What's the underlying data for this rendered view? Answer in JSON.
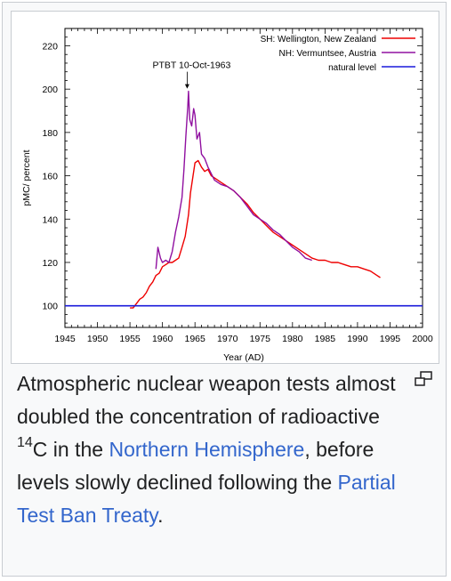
{
  "chart_data": {
    "type": "line",
    "title": "",
    "xlabel": "Year (AD)",
    "ylabel": "pMC/ percent",
    "xlim": [
      1945,
      2000
    ],
    "ylim": [
      90,
      228
    ],
    "x_ticks": [
      1945,
      1950,
      1955,
      1960,
      1965,
      1970,
      1975,
      1980,
      1985,
      1990,
      1995,
      2000
    ],
    "y_ticks": [
      100,
      120,
      140,
      160,
      180,
      200,
      220
    ],
    "legend_position": "top-right",
    "annotation": {
      "text": "PTBT 10-Oct-1963",
      "x": 1963.8,
      "y": 199
    },
    "series": [
      {
        "name": "SH: Wellington, New Zealand",
        "color": "#ee0000",
        "x": [
          1955.0,
          1955.5,
          1956.0,
          1956.5,
          1957.0,
          1957.5,
          1958.0,
          1958.5,
          1959.0,
          1959.5,
          1960.0,
          1960.5,
          1961.0,
          1961.5,
          1962.0,
          1962.5,
          1963.0,
          1963.5,
          1964.0,
          1964.3,
          1964.7,
          1965.0,
          1965.5,
          1966.0,
          1966.5,
          1967.0,
          1967.5,
          1968.0,
          1968.5,
          1969.0,
          1970.0,
          1971.0,
          1972.0,
          1973.0,
          1974.0,
          1975.0,
          1976.0,
          1977.0,
          1978.0,
          1979.0,
          1980.0,
          1981.0,
          1982.0,
          1983.0,
          1984.0,
          1985.0,
          1986.0,
          1987.0,
          1988.0,
          1989.0,
          1990.0,
          1991.0,
          1992.0,
          1993.0,
          1993.5
        ],
        "y": [
          99,
          99,
          101,
          103,
          104,
          106,
          109,
          111,
          114,
          115,
          118,
          119,
          120,
          120,
          121,
          122,
          127,
          132,
          142,
          152,
          160,
          166,
          167,
          164,
          162,
          163,
          160,
          159,
          158,
          157,
          155,
          153,
          150,
          147,
          143,
          140,
          137,
          134,
          132,
          130,
          128,
          126,
          124,
          122,
          121,
          121,
          120,
          120,
          119,
          118,
          118,
          117,
          116,
          114,
          113
        ]
      },
      {
        "name": "NH: Vermuntsee, Austria",
        "color": "#9010a0",
        "x": [
          1959.0,
          1959.3,
          1959.7,
          1960.0,
          1960.5,
          1961.0,
          1961.5,
          1962.0,
          1962.5,
          1963.0,
          1963.3,
          1963.6,
          1963.9,
          1964.0,
          1964.2,
          1964.5,
          1964.8,
          1965.0,
          1965.3,
          1965.7,
          1966.0,
          1966.5,
          1967.0,
          1968.0,
          1969.0,
          1970.0,
          1971.0,
          1972.0,
          1973.0,
          1974.0,
          1975.0,
          1976.0,
          1977.0,
          1978.0,
          1979.0,
          1980.0,
          1981.0,
          1982.0,
          1983.0
        ],
        "y": [
          117,
          127,
          122,
          120,
          121,
          120,
          125,
          134,
          141,
          150,
          163,
          178,
          192,
          199,
          186,
          183,
          191,
          188,
          177,
          180,
          170,
          168,
          164,
          158,
          156,
          155,
          153,
          150,
          146,
          142,
          140,
          138,
          135,
          133,
          130,
          127,
          125,
          122,
          121
        ]
      },
      {
        "name": "natural level",
        "color": "#1a1adb",
        "x": [
          1945,
          2000
        ],
        "y": [
          100,
          100
        ]
      }
    ]
  },
  "caption": {
    "part1": "Atmospheric nuclear weapon tests almost doubled the concentration of radioactive ",
    "sup": "14",
    "part2": "C in the ",
    "link1": "Northern Hemisphere",
    "part3": ", before levels slowly declined following the ",
    "link2": "Partial Test Ban Treaty",
    "part4": "."
  },
  "magnify_icon": "magnify-clip-icon"
}
